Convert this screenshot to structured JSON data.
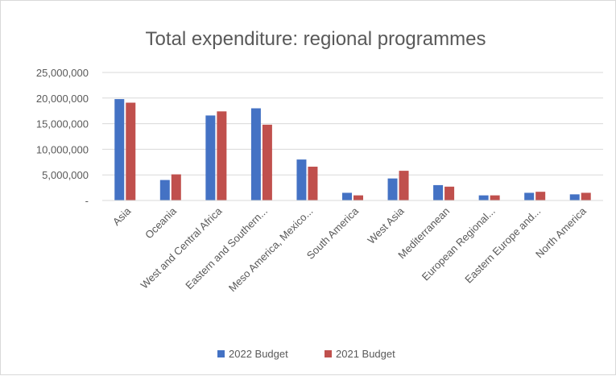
{
  "chart_data": {
    "type": "bar",
    "title": "Total expenditure: regional programmes",
    "xlabel": "",
    "ylabel": "",
    "categories": [
      "Asia",
      "Oceania",
      "West and Central Africa",
      "Eastern and Southern...",
      "Meso America, Mexico...",
      "South America",
      "West Asia",
      "Mediterranean",
      "European Regional...",
      "Eastern Europe and...",
      "North America"
    ],
    "series": [
      {
        "name": "2022 Budget",
        "color": "#4472c4",
        "values": [
          19800000,
          4000000,
          16600000,
          18000000,
          8000000,
          1500000,
          4300000,
          3000000,
          1000000,
          1500000,
          1200000
        ]
      },
      {
        "name": "2021 Budget",
        "color": "#c0504d",
        "values": [
          19100000,
          5100000,
          17400000,
          14800000,
          6600000,
          1000000,
          5800000,
          2700000,
          1000000,
          1700000,
          1500000
        ]
      }
    ],
    "ylim": [
      0,
      25000000
    ],
    "yticks": [
      0,
      5000000,
      10000000,
      15000000,
      20000000,
      25000000
    ],
    "ytick_labels": [
      "-",
      "5,000,000",
      "10,000,000",
      "15,000,000",
      "20,000,000",
      "25,000,000"
    ],
    "grid": true,
    "legend_position": "bottom"
  }
}
